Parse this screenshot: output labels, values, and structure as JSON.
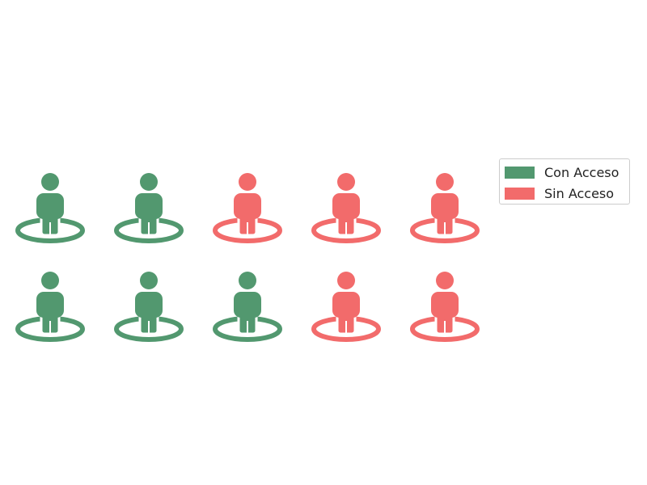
{
  "chart_data": {
    "type": "pictogram",
    "icon": "person-standing-on-circle-icon",
    "rows": 2,
    "columns": 5,
    "series": [
      {
        "name": "Con Acceso",
        "value": 5,
        "color": "#52986f"
      },
      {
        "name": "Sin Acceso",
        "value": 5,
        "color": "#f26b6b"
      }
    ],
    "grid": [
      [
        "Con Acceso",
        "Con Acceso",
        "Sin Acceso",
        "Sin Acceso",
        "Sin Acceso"
      ],
      [
        "Con Acceso",
        "Con Acceso",
        "Con Acceso",
        "Sin Acceso",
        "Sin Acceso"
      ]
    ],
    "legend": {
      "position": "right",
      "items": [
        {
          "label": "Con Acceso",
          "color": "#52986f"
        },
        {
          "label": "Sin Acceso",
          "color": "#f26b6b"
        }
      ]
    }
  }
}
